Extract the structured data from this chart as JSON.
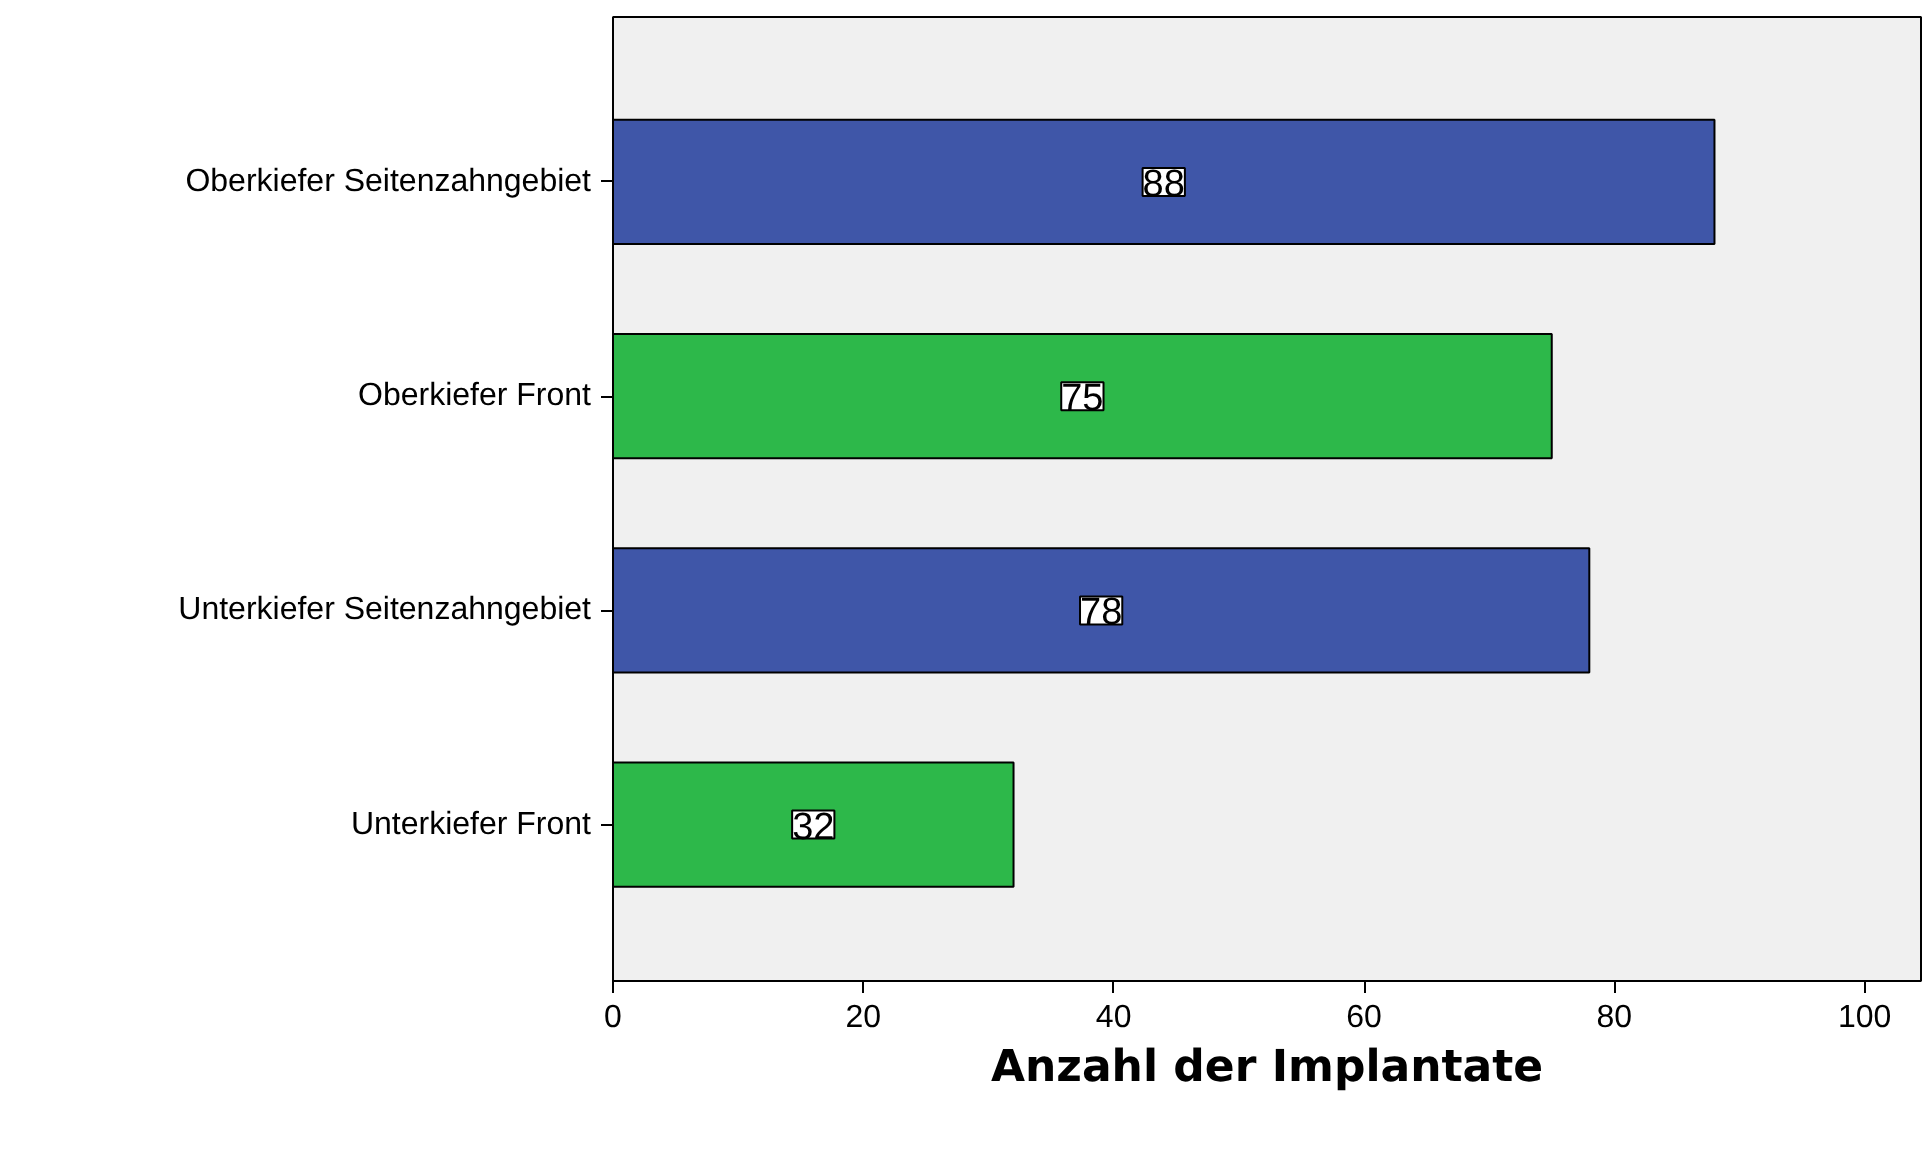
{
  "chart_data": {
    "type": "bar",
    "orientation": "horizontal",
    "xlabel": "Anzahl der Implantate",
    "categories": [
      "Oberkiefer Seitenzahngebiet",
      "Oberkiefer Front",
      "Unterkiefer Seitenzahngebiet",
      "Unterkiefer Front"
    ],
    "values": [
      88,
      75,
      78,
      32
    ],
    "colors": [
      "#3f56a8",
      "#2db84a",
      "#3f56a8",
      "#2db84a"
    ],
    "xlim": [
      0,
      104.5
    ],
    "xticks": [
      0,
      20,
      40,
      60,
      80,
      100
    ],
    "data_labels": true,
    "grid": false
  }
}
